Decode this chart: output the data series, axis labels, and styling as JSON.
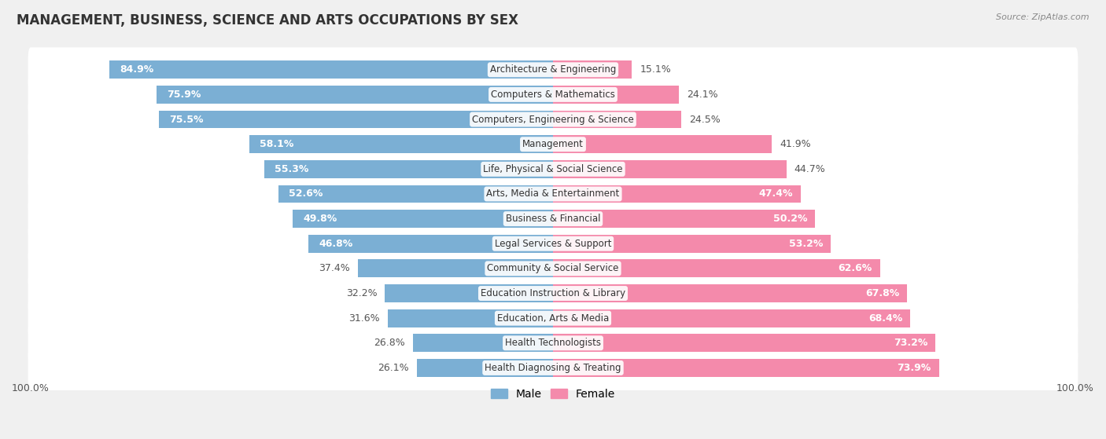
{
  "title": "MANAGEMENT, BUSINESS, SCIENCE AND ARTS OCCUPATIONS BY SEX",
  "source": "Source: ZipAtlas.com",
  "categories": [
    "Architecture & Engineering",
    "Computers & Mathematics",
    "Computers, Engineering & Science",
    "Management",
    "Life, Physical & Social Science",
    "Arts, Media & Entertainment",
    "Business & Financial",
    "Legal Services & Support",
    "Community & Social Service",
    "Education Instruction & Library",
    "Education, Arts & Media",
    "Health Technologists",
    "Health Diagnosing & Treating"
  ],
  "male_pct": [
    84.9,
    75.9,
    75.5,
    58.1,
    55.3,
    52.6,
    49.8,
    46.8,
    37.4,
    32.2,
    31.6,
    26.8,
    26.1
  ],
  "female_pct": [
    15.1,
    24.1,
    24.5,
    41.9,
    44.7,
    47.4,
    50.2,
    53.2,
    62.6,
    67.8,
    68.4,
    73.2,
    73.9
  ],
  "male_color": "#7bafd4",
  "female_color": "#f48aab",
  "bg_color": "#f0f0f0",
  "row_bg_color": "#e8e8e8",
  "title_fontsize": 12,
  "label_fontsize": 9,
  "tick_fontsize": 9,
  "legend_fontsize": 10,
  "cat_label_fontsize": 8.5
}
